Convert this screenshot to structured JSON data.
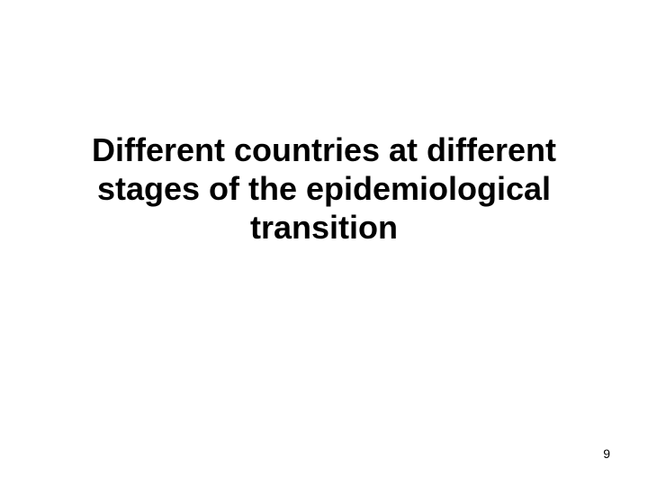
{
  "slide": {
    "title": "Different countries at different stages of the epidemiological transition",
    "page_number": "9",
    "title_fontsize": 36,
    "title_fontweight": "bold",
    "title_color": "#000000",
    "background_color": "#ffffff",
    "page_number_fontsize": 14,
    "page_number_color": "#000000"
  }
}
